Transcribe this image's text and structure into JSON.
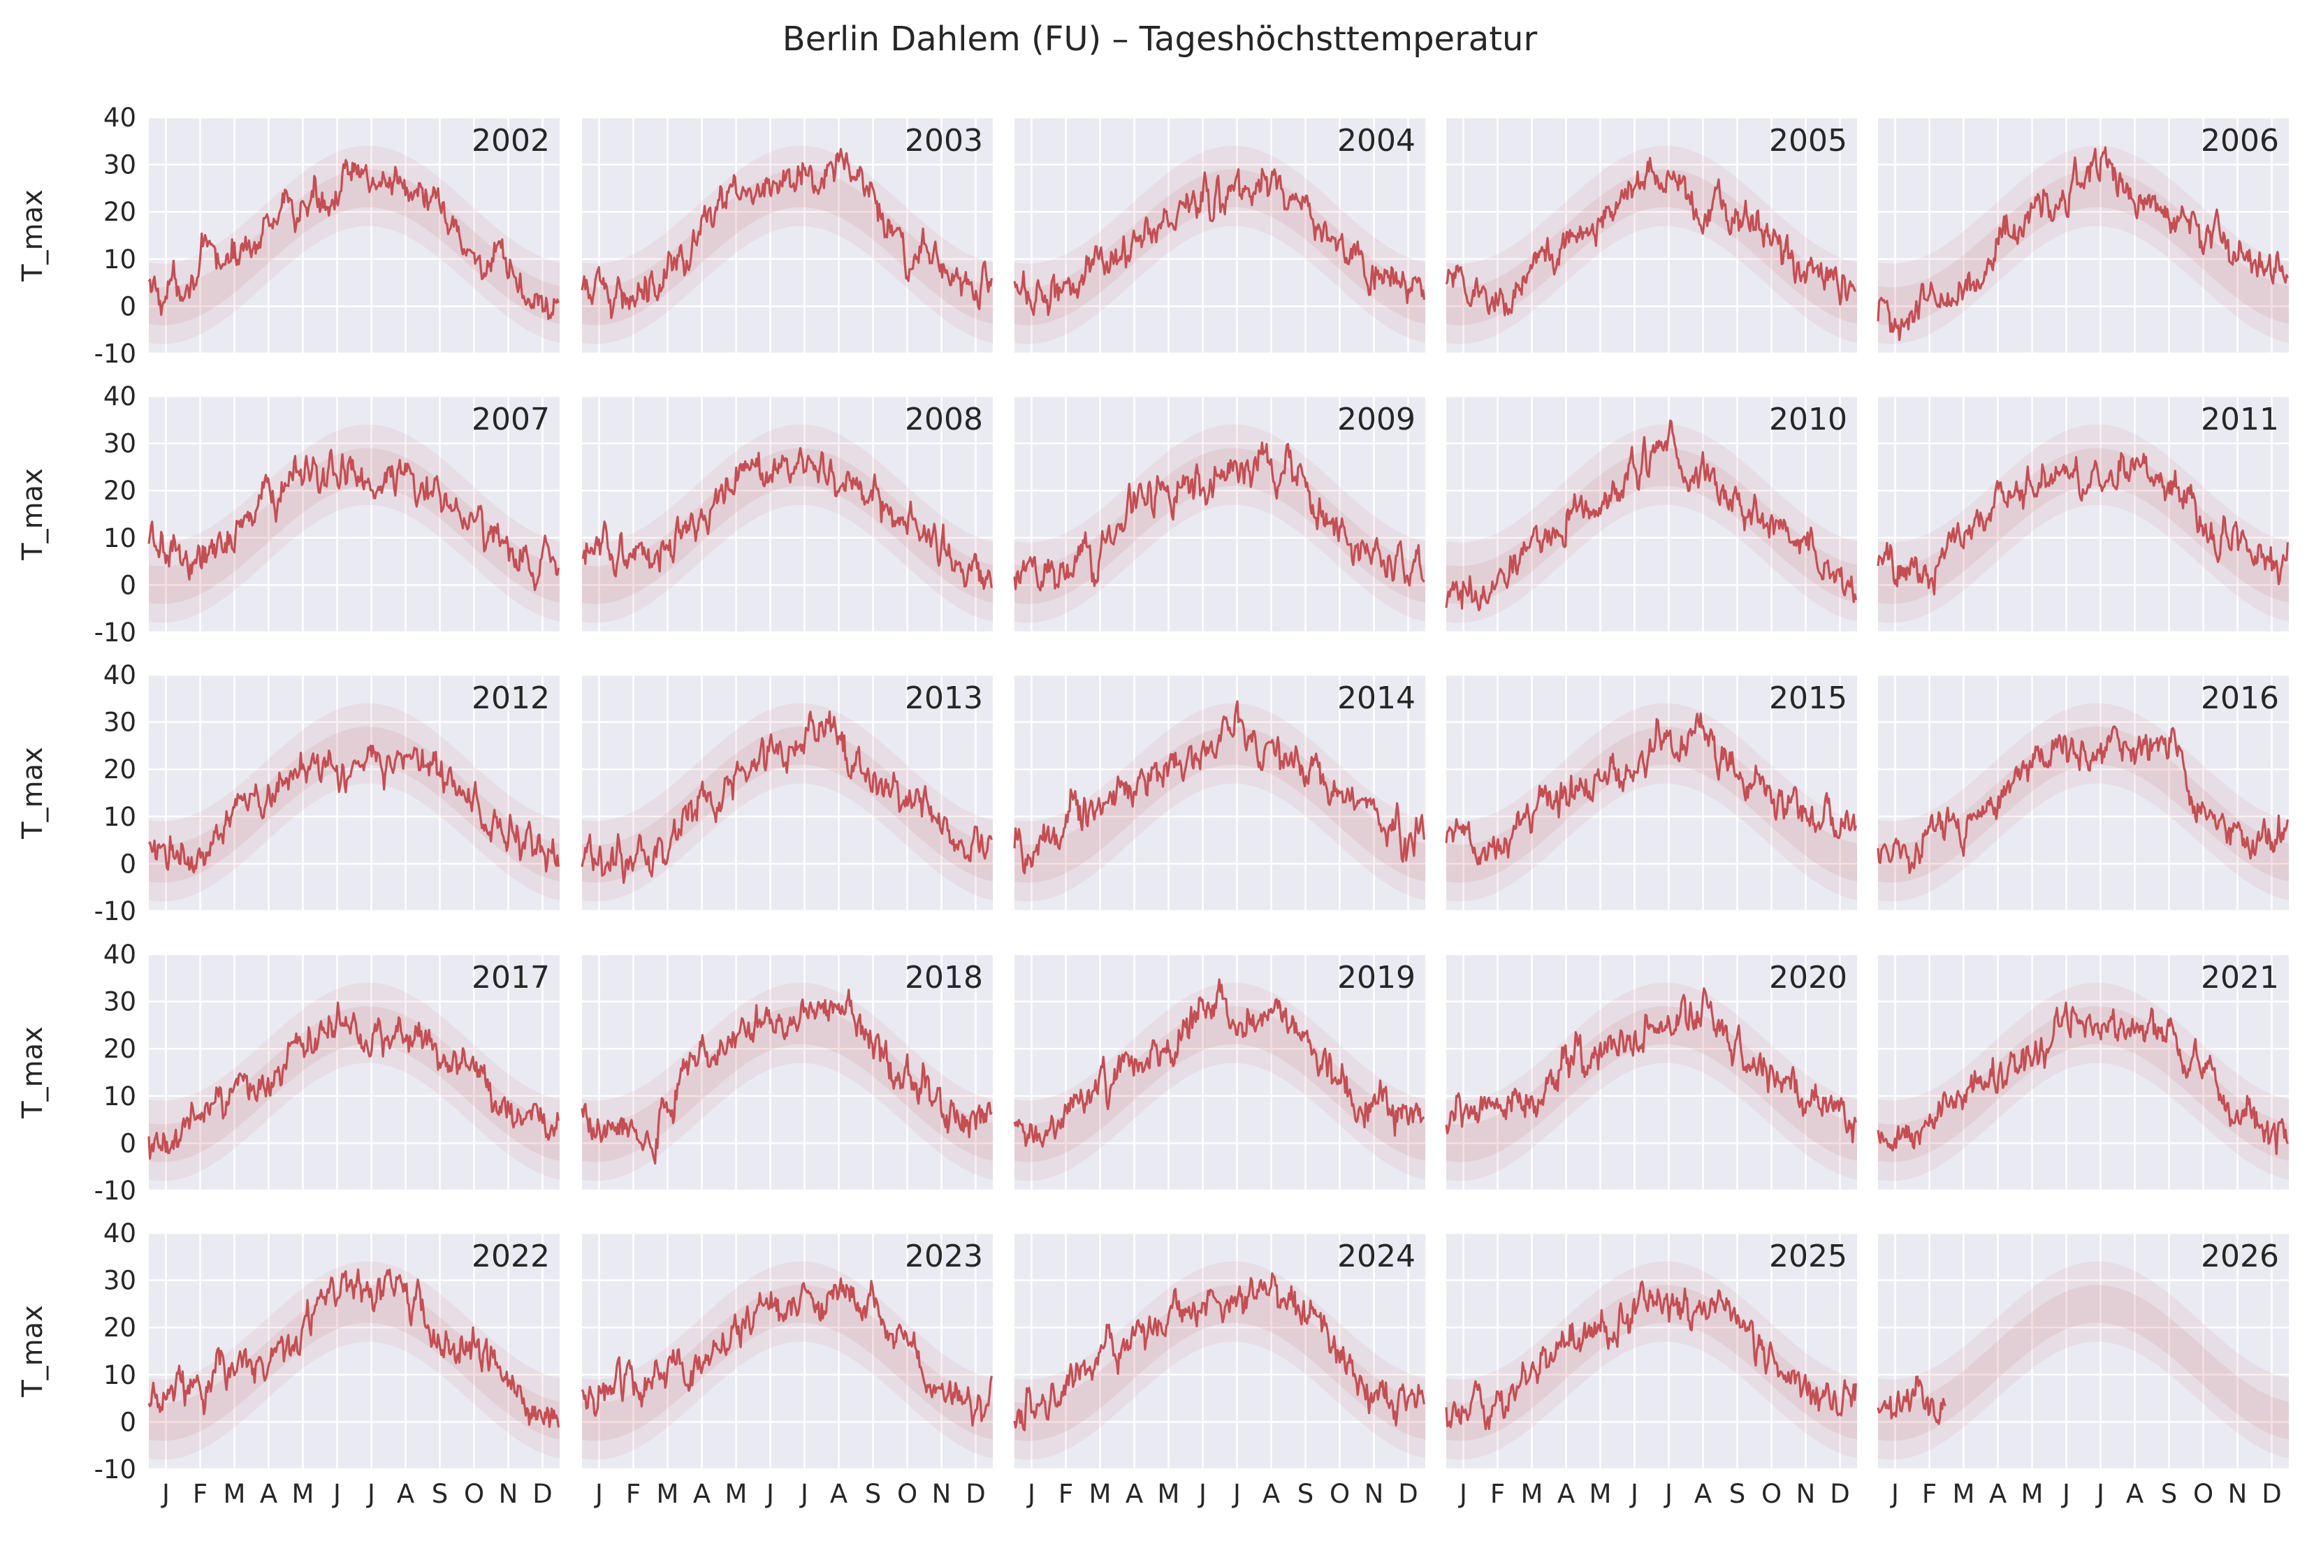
{
  "chart_data": {
    "type": "line",
    "title": "Berlin Dahlem (FU) – Tageshöchsttemperatur",
    "ylabel": "T_max",
    "xlabel": "",
    "ylim": [
      -10,
      40
    ],
    "yticks": [
      -10,
      0,
      10,
      20,
      30,
      40
    ],
    "month_ticks": [
      "J",
      "F",
      "M",
      "A",
      "M",
      "J",
      "J",
      "A",
      "S",
      "O",
      "N",
      "D"
    ],
    "grid": true,
    "layout": "5x5 small multiples, one panel per year",
    "colors": {
      "line": "#c44e52",
      "band": "#c44e52",
      "panel_bg": "#eaeaf2",
      "grid": "#ffffff"
    },
    "climatology_band": "faint red envelope of daily maxima across all years",
    "panels": [
      {
        "year": "2002",
        "monthly_tmax": [
          3,
          9,
          10,
          17,
          21,
          25,
          27,
          27,
          19,
          11,
          6,
          0
        ]
      },
      {
        "year": "2003",
        "monthly_tmax": [
          2,
          3,
          10,
          15,
          22,
          28,
          27,
          30,
          21,
          11,
          8,
          4
        ]
      },
      {
        "year": "2004",
        "monthly_tmax": [
          2,
          5,
          8,
          15,
          18,
          22,
          23,
          26,
          21,
          13,
          7,
          3
        ]
      },
      {
        "year": "2005",
        "monthly_tmax": [
          5,
          1,
          6,
          16,
          20,
          24,
          26,
          22,
          21,
          15,
          8,
          3
        ]
      },
      {
        "year": "2006",
        "monthly_tmax": [
          -2,
          1,
          4,
          13,
          19,
          24,
          31,
          21,
          22,
          16,
          11,
          7
        ]
      },
      {
        "year": "2007",
        "monthly_tmax": [
          8,
          6,
          10,
          20,
          22,
          25,
          24,
          24,
          18,
          13,
          7,
          3
        ]
      },
      {
        "year": "2008",
        "monthly_tmax": [
          6,
          8,
          9,
          13,
          22,
          23,
          26,
          24,
          18,
          13,
          8,
          3
        ]
      },
      {
        "year": "2009",
        "monthly_tmax": [
          0,
          3,
          8,
          19,
          20,
          21,
          26,
          26,
          21,
          11,
          8,
          1
        ]
      },
      {
        "year": "2010",
        "monthly_tmax": [
          -3,
          0,
          9,
          15,
          15,
          24,
          30,
          23,
          17,
          12,
          7,
          -2
        ]
      },
      {
        "year": "2011",
        "monthly_tmax": [
          4,
          3,
          10,
          18,
          21,
          24,
          22,
          24,
          21,
          14,
          8,
          6
        ]
      },
      {
        "year": "2012",
        "monthly_tmax": [
          5,
          -1,
          12,
          15,
          22,
          22,
          24,
          25,
          20,
          13,
          8,
          3
        ]
      },
      {
        "year": "2013",
        "monthly_tmax": [
          1,
          1,
          2,
          13,
          19,
          23,
          27,
          26,
          18,
          15,
          8,
          6
        ]
      },
      {
        "year": "2014",
        "monthly_tmax": [
          3,
          8,
          14,
          17,
          19,
          22,
          28,
          23,
          20,
          16,
          10,
          5
        ]
      },
      {
        "year": "2015",
        "monthly_tmax": [
          5,
          4,
          10,
          15,
          19,
          22,
          26,
          29,
          20,
          13,
          10,
          9
        ]
      },
      {
        "year": "2016",
        "monthly_tmax": [
          2,
          7,
          8,
          13,
          21,
          24,
          25,
          24,
          26,
          12,
          6,
          5
        ]
      },
      {
        "year": "2017",
        "monthly_tmax": [
          1,
          6,
          12,
          13,
          21,
          24,
          24,
          24,
          18,
          15,
          8,
          5
        ]
      },
      {
        "year": "2018",
        "monthly_tmax": [
          5,
          1,
          6,
          19,
          24,
          24,
          28,
          28,
          21,
          15,
          7,
          5
        ]
      },
      {
        "year": "2019",
        "monthly_tmax": [
          3,
          8,
          11,
          17,
          18,
          29,
          27,
          28,
          20,
          15,
          8,
          6
        ]
      },
      {
        "year": "2020",
        "monthly_tmax": [
          6,
          9,
          10,
          17,
          18,
          24,
          24,
          28,
          21,
          15,
          10,
          5
        ]
      },
      {
        "year": "2021",
        "monthly_tmax": [
          3,
          3,
          10,
          13,
          17,
          28,
          26,
          23,
          21,
          15,
          7,
          4
        ]
      },
      {
        "year": "2022",
        "monthly_tmax": [
          5,
          8,
          11,
          14,
          21,
          26,
          27,
          28,
          18,
          16,
          9,
          3
        ]
      },
      {
        "year": "2023",
        "monthly_tmax": [
          6,
          7,
          10,
          13,
          20,
          25,
          26,
          25,
          24,
          16,
          8,
          5
        ]
      },
      {
        "year": "2024",
        "monthly_tmax": [
          3,
          9,
          14,
          17,
          22,
          24,
          27,
          28,
          22,
          14,
          8,
          5
        ]
      },
      {
        "year": "2025",
        "monthly_tmax": [
          4,
          4,
          11,
          17,
          19,
          25,
          27,
          26,
          22,
          14,
          8,
          5
        ]
      },
      {
        "year": "2026",
        "monthly_tmax": [
          2,
          6
        ]
      }
    ]
  }
}
